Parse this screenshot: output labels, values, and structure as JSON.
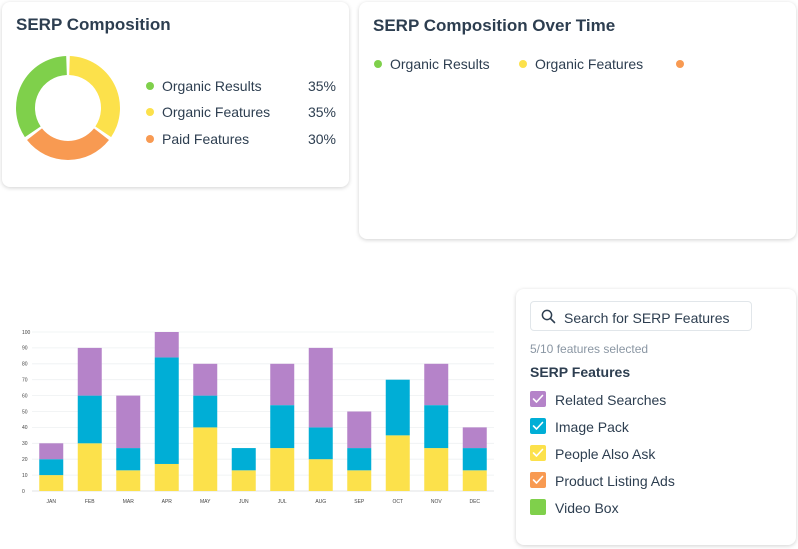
{
  "composition": {
    "title": "SERP Composition",
    "items": [
      {
        "label": "Organic Results",
        "value": "35%",
        "color": "#7fd04b"
      },
      {
        "label": "Organic Features",
        "value": "35%",
        "color": "#fce14b"
      },
      {
        "label": "Paid Features",
        "value": "30%",
        "color": "#f89a52"
      }
    ]
  },
  "over_time": {
    "title": "SERP Composition Over Time",
    "legend": [
      {
        "label": "Organic Results",
        "color": "#7fd04b"
      },
      {
        "label": "Organic Features",
        "color": "#fce14b"
      },
      {
        "label": "",
        "color": "#f89a52"
      }
    ]
  },
  "features_panel": {
    "search_placeholder": "Search for SERP Features",
    "count_text": "5/10 features selected",
    "heading": "SERP Features",
    "items": [
      {
        "label": "Related Searches",
        "color": "#b583c9",
        "checked": true
      },
      {
        "label": "Image Pack",
        "color": "#00aed6",
        "checked": true
      },
      {
        "label": "People Also Ask",
        "color": "#fce14b",
        "checked": true
      },
      {
        "label": "Product Listing Ads",
        "color": "#f89a52",
        "checked": true
      },
      {
        "label": "Video Box",
        "color": "#7fd04b",
        "checked": false
      }
    ]
  },
  "chart_data": [
    {
      "type": "pie",
      "title": "SERP Composition",
      "categories": [
        "Organic Results",
        "Organic Features",
        "Paid Features"
      ],
      "values": [
        35,
        35,
        30
      ],
      "colors": [
        "#7fd04b",
        "#fce14b",
        "#f89a52"
      ]
    },
    {
      "type": "bar",
      "stacked": true,
      "categories": [
        "JAN",
        "FEB",
        "MAR",
        "APR",
        "MAY",
        "JUN",
        "JUL",
        "AUG",
        "SEP",
        "OCT",
        "NOV",
        "DEC"
      ],
      "series": [
        {
          "color": "#fce14b",
          "values": [
            10,
            30,
            13,
            17,
            40,
            13,
            27,
            20,
            13,
            35,
            27,
            13
          ]
        },
        {
          "color": "#00aed6",
          "values": [
            10,
            30,
            14,
            67,
            20,
            14,
            27,
            20,
            14,
            35,
            27,
            14
          ]
        },
        {
          "color": "#b583c9",
          "values": [
            10,
            30,
            33,
            16,
            20,
            0,
            26,
            50,
            23,
            0,
            26,
            13
          ]
        }
      ],
      "ylim": [
        0,
        100
      ],
      "yticks": [
        0,
        10,
        20,
        30,
        40,
        50,
        60,
        70,
        80,
        90,
        100
      ],
      "grid": true
    }
  ]
}
